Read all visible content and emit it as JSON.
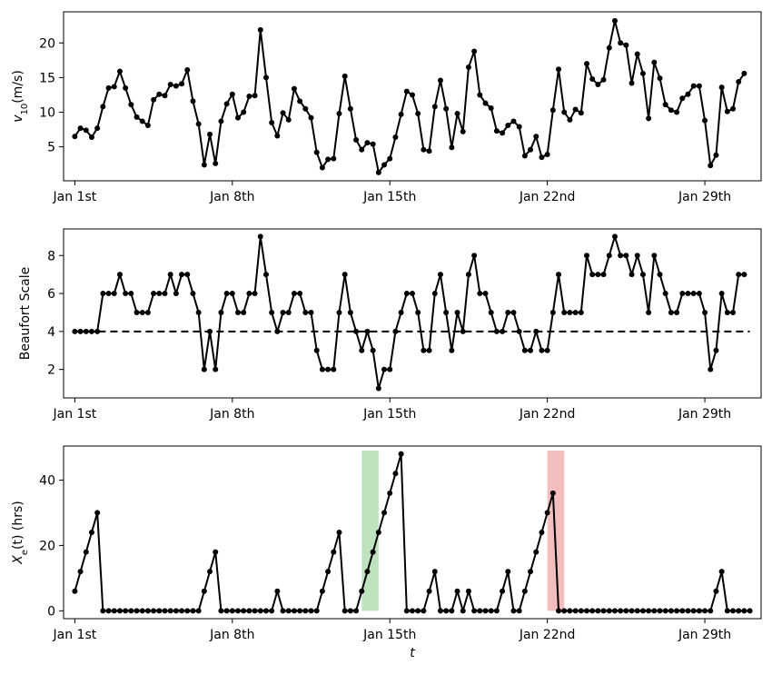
{
  "chart_data": [
    {
      "type": "line",
      "ylabel": "v10(m/s)",
      "ylabel_math": {
        "base": "v",
        "sub": "10",
        "unit": "(m/s)"
      },
      "xlim": [
        -0.5,
        30.5
      ],
      "ylim": [
        0.1,
        24.5
      ],
      "x_ticks": [
        0,
        7,
        14,
        21,
        28
      ],
      "x_tick_labels": [
        "Jan 1st",
        "Jan 8th",
        "Jan 15th",
        "Jan 22nd",
        "Jan 29th"
      ],
      "y_ticks": [
        5,
        10,
        15,
        20
      ],
      "y_tick_labels": [
        "5",
        "10",
        "15",
        "20"
      ],
      "x_step": 0.25,
      "series": [
        {
          "color": "#000000",
          "values": [
            6.5,
            7.7,
            7.4,
            6.4,
            7.7,
            10.8,
            13.5,
            13.7,
            15.9,
            13.5,
            11.1,
            9.3,
            8.7,
            8.1,
            11.8,
            12.6,
            12.4,
            14.0,
            13.8,
            14.1,
            16.1,
            11.6,
            8.3,
            2.4,
            6.8,
            2.6,
            8.7,
            11.2,
            12.6,
            9.2,
            10.0,
            12.3,
            12.4,
            21.9,
            15.0,
            8.5,
            6.6,
            9.9,
            8.9,
            13.4,
            11.6,
            10.5,
            9.2,
            4.2,
            2.0,
            3.2,
            3.3,
            9.8,
            15.2,
            10.5,
            6.0,
            4.6,
            5.6,
            5.4,
            1.3,
            2.4,
            3.3,
            6.4,
            9.7,
            13.0,
            12.5,
            9.8,
            4.6,
            4.4,
            10.8,
            14.6,
            10.5,
            4.9,
            9.8,
            7.2,
            16.5,
            18.8,
            12.5,
            11.3,
            10.6,
            7.3,
            7.0,
            8.1,
            8.7,
            7.9,
            3.7,
            4.6,
            6.5,
            3.5,
            3.9,
            10.3,
            16.2,
            10.0,
            8.9,
            10.4,
            9.9,
            17.0,
            14.8,
            14.0,
            14.7,
            19.3,
            23.2,
            20.0,
            19.7,
            14.2,
            18.4,
            15.6,
            9.1,
            17.2,
            14.9,
            11.1,
            10.3,
            10.0,
            12.0,
            12.6,
            13.8,
            13.8,
            8.8,
            2.3,
            3.8,
            13.6,
            10.1,
            10.5,
            14.4,
            15.6
          ]
        }
      ]
    },
    {
      "type": "line",
      "ylabel": "Beaufort Scale",
      "xlim": [
        -0.5,
        30.5
      ],
      "ylim": [
        0.5,
        9.4
      ],
      "x_ticks": [
        0,
        7,
        14,
        21,
        28
      ],
      "x_tick_labels": [
        "Jan 1st",
        "Jan 8th",
        "Jan 15th",
        "Jan 22nd",
        "Jan 29th"
      ],
      "y_ticks": [
        2,
        4,
        6,
        8
      ],
      "y_tick_labels": [
        "2",
        "4",
        "6",
        "8"
      ],
      "x_step": 0.25,
      "reference_line": {
        "y": 4,
        "style": "dashed",
        "x_range": [
          0,
          30
        ]
      },
      "series": [
        {
          "color": "#000000",
          "values": [
            4,
            4,
            4,
            4,
            4,
            6,
            6,
            6,
            7,
            6,
            6,
            5,
            5,
            5,
            6,
            6,
            6,
            7,
            6,
            7,
            7,
            6,
            5,
            2,
            4,
            2,
            5,
            6,
            6,
            5,
            5,
            6,
            6,
            9,
            7,
            5,
            4,
            5,
            5,
            6,
            6,
            5,
            5,
            3,
            2,
            2,
            2,
            5,
            7,
            5,
            4,
            3,
            4,
            3,
            1,
            2,
            2,
            4,
            5,
            6,
            6,
            5,
            3,
            3,
            6,
            7,
            5,
            3,
            5,
            4,
            7,
            8,
            6,
            6,
            5,
            4,
            4,
            5,
            5,
            4,
            3,
            3,
            4,
            3,
            3,
            5,
            7,
            5,
            5,
            5,
            5,
            8,
            7,
            7,
            7,
            8,
            9,
            8,
            8,
            7,
            8,
            7,
            5,
            8,
            7,
            6,
            5,
            5,
            6,
            6,
            6,
            6,
            5,
            2,
            3,
            6,
            5,
            5,
            7,
            7
          ]
        }
      ]
    },
    {
      "type": "line",
      "xlabel": "t",
      "ylabel": "Xe(t) (hrs)",
      "ylabel_math": {
        "base": "X",
        "sub": "e",
        "unit": "(t) (hrs)"
      },
      "xlim": [
        -0.5,
        30.5
      ],
      "ylim": [
        -2.4,
        50.4
      ],
      "x_ticks": [
        0,
        7,
        14,
        21,
        28
      ],
      "x_tick_labels": [
        "Jan 1st",
        "Jan 8th",
        "Jan 15th",
        "Jan 22nd",
        "Jan 29th"
      ],
      "y_ticks": [
        0,
        20,
        40
      ],
      "y_tick_labels": [
        "0",
        "20",
        "40"
      ],
      "x_step": 0.25,
      "highlight_spans": [
        {
          "x_range": [
            12.75,
            13.5
          ],
          "y_range": [
            0,
            49
          ],
          "color": "#2ca02c",
          "opacity": 0.3
        },
        {
          "x_range": [
            21.0,
            21.75
          ],
          "y_range": [
            0,
            49
          ],
          "color": "#d62728",
          "opacity": 0.3
        }
      ],
      "series": [
        {
          "color": "#000000",
          "values": [
            6,
            12,
            18,
            24,
            30,
            0,
            0,
            0,
            0,
            0,
            0,
            0,
            0,
            0,
            0,
            0,
            0,
            0,
            0,
            0,
            0,
            0,
            0,
            6,
            12,
            18,
            0,
            0,
            0,
            0,
            0,
            0,
            0,
            0,
            0,
            0,
            6,
            0,
            0,
            0,
            0,
            0,
            0,
            0,
            6,
            12,
            18,
            24,
            0,
            0,
            0,
            6,
            12,
            18,
            24,
            30,
            36,
            42,
            48,
            0,
            0,
            0,
            0,
            6,
            12,
            0,
            0,
            0,
            6,
            0,
            6,
            0,
            0,
            0,
            0,
            0,
            6,
            12,
            0,
            0,
            6,
            12,
            18,
            24,
            30,
            36,
            0,
            0,
            0,
            0,
            0,
            0,
            0,
            0,
            0,
            0,
            0,
            0,
            0,
            0,
            0,
            0,
            0,
            0,
            0,
            0,
            0,
            0,
            0,
            0,
            0,
            0,
            0,
            0,
            6,
            12,
            0,
            0,
            0,
            0,
            0
          ]
        }
      ]
    }
  ]
}
